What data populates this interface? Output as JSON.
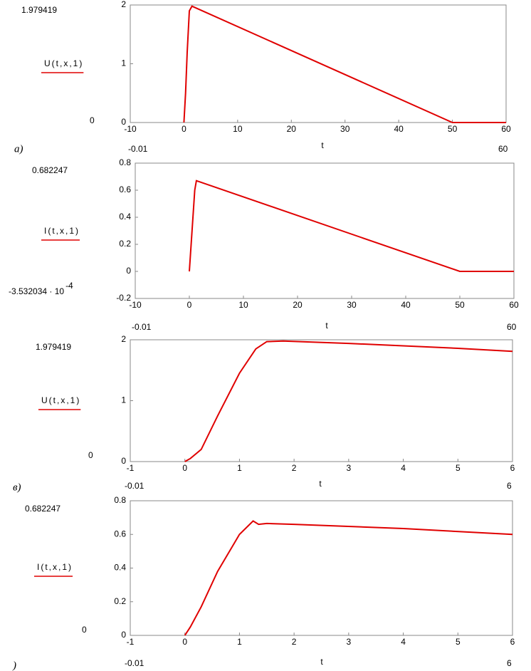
{
  "chart_data": [
    {
      "type": "line",
      "panel_label": "а)",
      "y_label": "U(t,x,1)",
      "x_label": "t",
      "ymax_label": "1.979419",
      "ymin_label": "0",
      "xmin_label": "-0.01",
      "xmax_label": "60",
      "color": "#e00000",
      "x": [
        0,
        0.3,
        0.6,
        1,
        1.5,
        50,
        60
      ],
      "values": [
        0,
        0.5,
        1.2,
        1.9,
        1.98,
        0,
        0
      ],
      "xlim": [
        -10,
        60
      ],
      "xticks": [
        -10,
        0,
        10,
        20,
        30,
        40,
        50,
        60
      ],
      "ylim": [
        0,
        2
      ],
      "yticks": [
        0,
        1,
        2
      ]
    },
    {
      "type": "line",
      "y_label": "I(t,x,1)",
      "x_label": "t",
      "ymax_label": "0.682247",
      "ymin_label": "-3.532034 · 10",
      "ymin_label_exponent": "-4",
      "xmin_label": "-0.01",
      "xmax_label": "60",
      "color": "#e00000",
      "x": [
        0,
        0.5,
        1,
        1.3,
        50,
        60
      ],
      "values": [
        0,
        0.3,
        0.6,
        0.67,
        0,
        0
      ],
      "xlim": [
        -10,
        60
      ],
      "xticks": [
        -10,
        0,
        10,
        20,
        30,
        40,
        50,
        60
      ],
      "ylim": [
        -0.2,
        0.8
      ],
      "yticks": [
        -0.2,
        0,
        0.2,
        0.4,
        0.6,
        0.8
      ]
    },
    {
      "type": "line",
      "panel_label": "в)",
      "y_label": "U(t,x,1)",
      "x_label": "t",
      "ymax_label": "1.979419",
      "ymin_label": "0",
      "xmin_label": "-0.01",
      "xmax_label": "6",
      "color": "#e00000",
      "x": [
        0,
        0.1,
        0.3,
        0.6,
        1,
        1.3,
        1.5,
        1.8,
        3,
        5,
        6
      ],
      "values": [
        0,
        0.05,
        0.2,
        0.75,
        1.45,
        1.85,
        1.97,
        1.98,
        1.94,
        1.86,
        1.81
      ],
      "xlim": [
        -1,
        6
      ],
      "xticks": [
        -1,
        0,
        1,
        2,
        3,
        4,
        5,
        6
      ],
      "ylim": [
        0,
        2
      ],
      "yticks": [
        0,
        1,
        2
      ]
    },
    {
      "type": "line",
      "panel_label": ")",
      "y_label": "I(t,x,1)",
      "x_label": "t",
      "ymax_label": "0.682247",
      "ymin_label": "0",
      "xmin_label": "-0.01",
      "xmax_label": "6",
      "color": "#e00000",
      "x": [
        0,
        0.1,
        0.3,
        0.6,
        1,
        1.25,
        1.35,
        1.5,
        2,
        4,
        6
      ],
      "values": [
        0,
        0.05,
        0.17,
        0.38,
        0.6,
        0.68,
        0.66,
        0.665,
        0.66,
        0.635,
        0.6
      ],
      "xlim": [
        -1,
        6
      ],
      "xticks": [
        -1,
        0,
        1,
        2,
        3,
        4,
        5,
        6
      ],
      "ylim": [
        0,
        0.8
      ],
      "yticks": [
        0,
        0.2,
        0.4,
        0.6,
        0.8
      ]
    }
  ]
}
